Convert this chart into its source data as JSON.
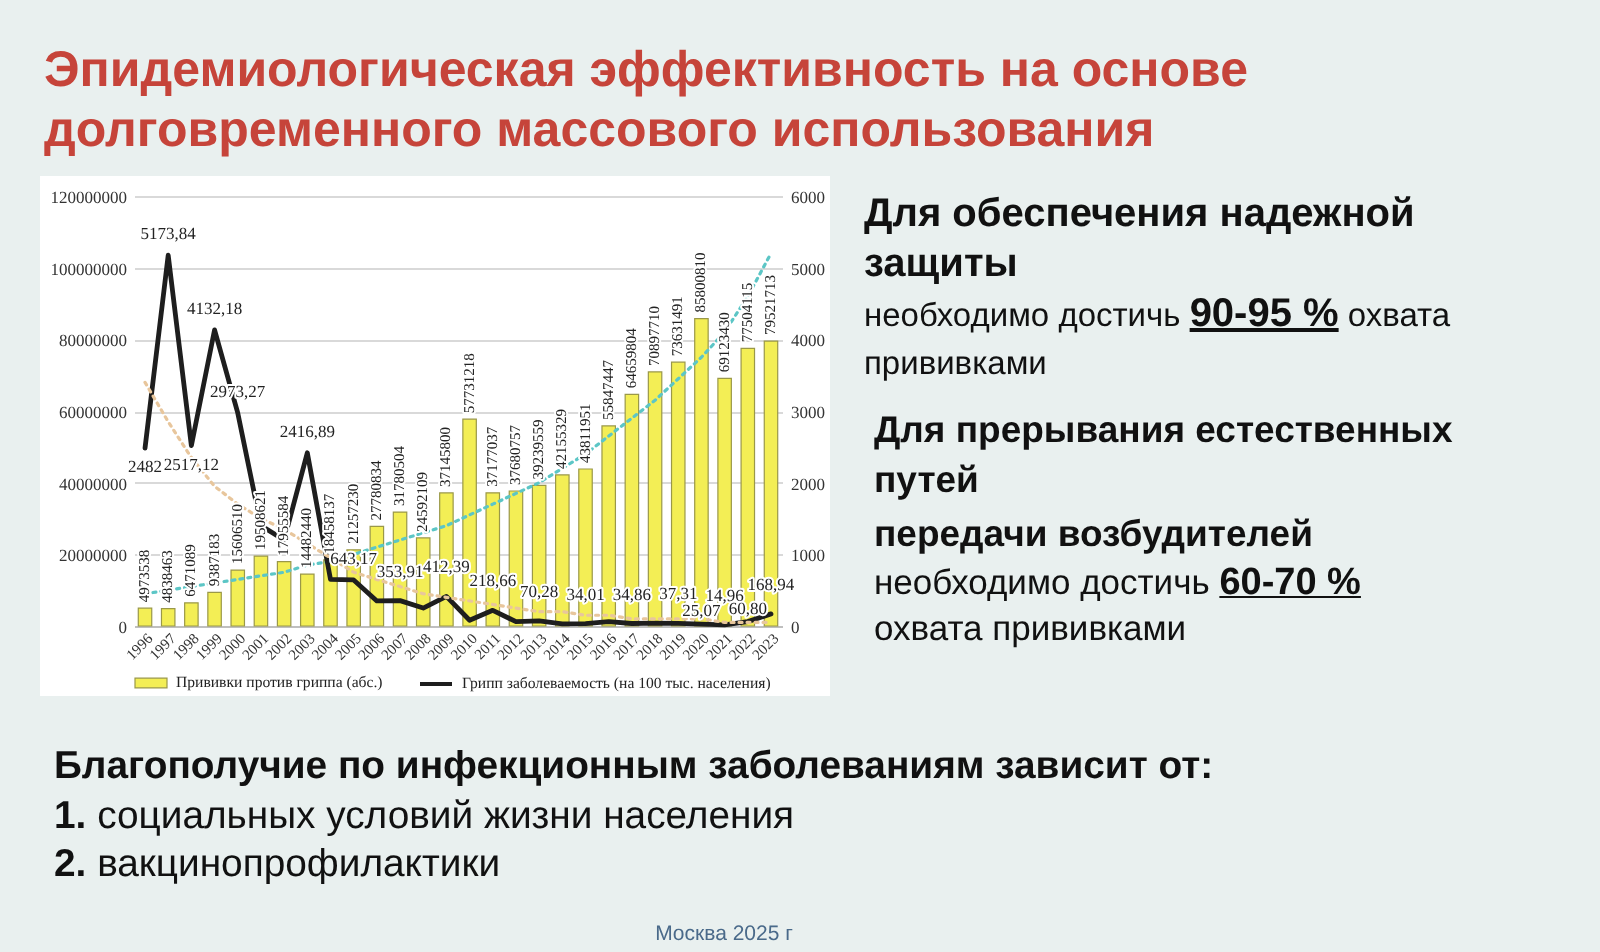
{
  "chart_data": {
    "type": "bar",
    "title": "Эпидемиологическая эффективность на основе долговременного массового использования",
    "categories": [
      "1996",
      "1997",
      "1998",
      "1999",
      "2000",
      "2001",
      "2002",
      "2003",
      "2004",
      "2005",
      "2006",
      "2007",
      "2008",
      "2009",
      "2010",
      "2011",
      "2012",
      "2013",
      "2014",
      "2015",
      "2016",
      "2017",
      "2018",
      "2019",
      "2020",
      "2021",
      "2022",
      "2023"
    ],
    "series": [
      {
        "name": "Прививки против гриппа (абс.)",
        "color": "#f3ee55",
        "values": [
          4973538,
          4838463,
          6471089,
          9387183,
          15606510,
          19508621,
          17955584,
          14482440,
          18458137,
          21257230,
          27780834,
          31780504,
          24592109,
          37145800,
          57731218,
          37177037,
          37680757,
          39239559,
          42155329,
          43811951,
          55847447,
          64659804,
          70897710,
          73631491,
          85800810,
          69123430,
          77504115,
          79521713
        ],
        "value_labels": [
          "4973538",
          "4838463",
          "6471089",
          "9387183",
          "15606510",
          "19508621",
          "17955584",
          "14482440",
          "18458137",
          "21257230",
          "27780834",
          "31780504",
          "24592109",
          "37145800",
          "57731218",
          "37177037",
          "37680757",
          "39239559",
          "42155329",
          "43811951",
          "55847447",
          "64659804",
          "70897710",
          "73631491",
          "85800810",
          "69123430",
          "77504115",
          "79521713"
        ]
      },
      {
        "name": "Грипп заболеваемость (на 100 тыс. населения)",
        "type": "line",
        "axis": "y2",
        "color": "#1e1e1e",
        "values": [
          2482,
          5173.84,
          2517.12,
          4132.18,
          2973.27,
          1400,
          1200,
          2416.89,
          650,
          643.17,
          350,
          353.91,
          250,
          412.39,
          80,
          218.66,
          60,
          70.28,
          30,
          34.01,
          60,
          34.86,
          40,
          37.31,
          25.07,
          14.96,
          60.8,
          168.94
        ],
        "value_labels": [
          "2482",
          "5173,84",
          "2517,12",
          "4132,18",
          "2973,27",
          null,
          null,
          "2416,89",
          null,
          "643,17",
          null,
          "353,91",
          null,
          "412,39",
          null,
          "218,66",
          null,
          "70,28",
          null,
          "34,01",
          null,
          "34,86",
          null,
          "37,31",
          "25,07",
          "14,96",
          "60,80",
          "168,94"
        ]
      },
      {
        "type": "line",
        "axis": "y2",
        "color": "#e8c69c",
        "line_style": "dotted",
        "values": [
          3400,
          2850,
          2350,
          1950,
          1700,
          1500,
          1350,
          1150,
          950,
          750,
          650,
          550,
          450,
          400,
          350,
          300,
          250,
          200,
          200,
          150,
          150,
          100,
          100,
          100,
          100,
          50,
          50,
          50
        ]
      },
      {
        "type": "line",
        "color": "#5cc6c6",
        "line_style": "dotted",
        "values": [
          9000000,
          10000000,
          11000000,
          12000000,
          13000000,
          14000000,
          15000000,
          17000000,
          18000000,
          20000000,
          22000000,
          24000000,
          26000000,
          28000000,
          31000000,
          34000000,
          37000000,
          40000000,
          44000000,
          48000000,
          53000000,
          58000000,
          63000000,
          69000000,
          75000000,
          82000000,
          92000000,
          104000000
        ]
      }
    ],
    "ylim": [
      0,
      120000000
    ],
    "yticks": [
      0,
      20000000,
      40000000,
      60000000,
      80000000,
      100000000,
      120000000
    ],
    "y2lim": [
      0,
      6000
    ],
    "y2ticks": [
      0,
      1000,
      2000,
      3000,
      4000,
      5000,
      6000
    ],
    "grid": "y",
    "legend": "bottom",
    "annotations": [
      "Для обеспечения надежной защиты",
      "необходимо достичь",
      "90-95 %",
      "охвата",
      "прививками",
      "Для прерывания естественных путей",
      "передачи возбудителей",
      "необходимо достичь",
      "60-70 %",
      "охвата прививками",
      "Благополучие по инфекционным заболеваниям зависит от:",
      "1.",
      "социальных условий жизни населения",
      "2.",
      "вакцинопрофилактики",
      "Москва 2025 г"
    ]
  }
}
